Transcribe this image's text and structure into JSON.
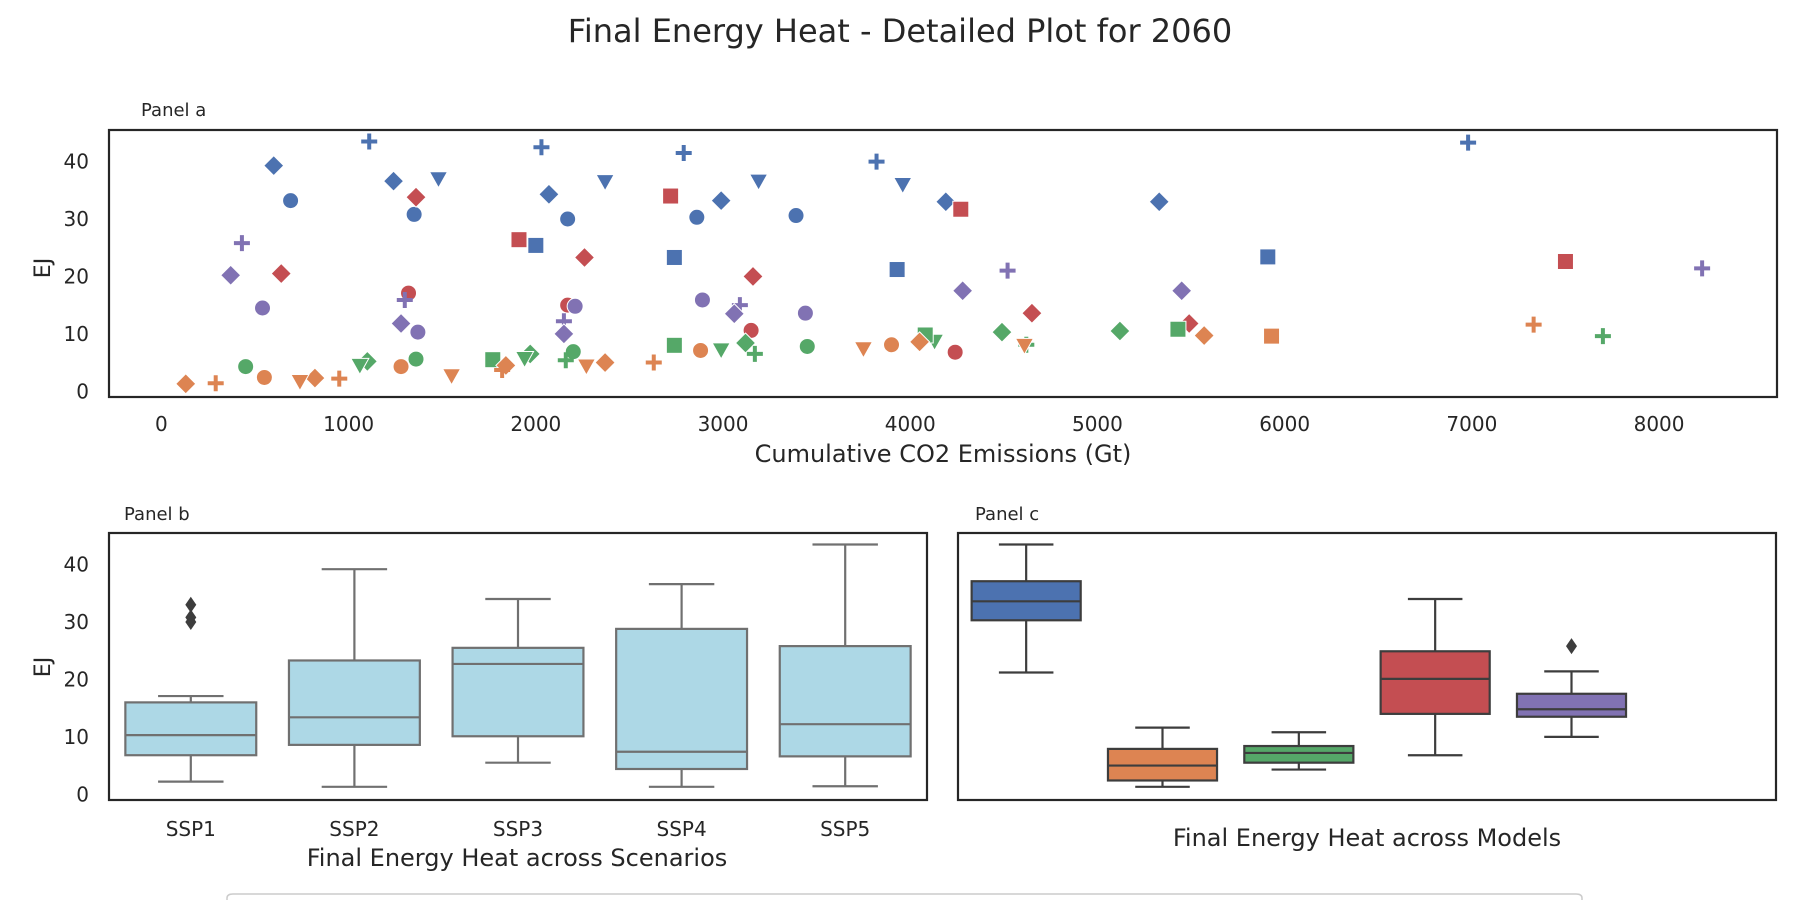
{
  "figure": {
    "title": "Final Energy Heat - Detailed Plot for 2060"
  },
  "colors": {
    "blue": "#4C72B0",
    "orange": "#DD8452",
    "green": "#55A868",
    "red": "#C44E52",
    "purple": "#8172B3",
    "box_fill": "#ADD8E6",
    "box_edge": "#707070"
  },
  "chart_data": [
    {
      "type": "scatter",
      "panel_label": "Panel a",
      "xlabel": "Cumulative CO2 Emissions (Gt)",
      "ylabel": "EJ",
      "xlim": [
        -280,
        8630
      ],
      "ylim": [
        -1,
        45.5
      ],
      "xticks": [
        0,
        1000,
        2000,
        3000,
        4000,
        5000,
        6000,
        7000,
        8000
      ],
      "yticks": [
        0,
        10,
        20,
        30,
        40
      ],
      "grid": false,
      "points": [
        {
          "x": 1110,
          "y": 43.5,
          "color": "blue",
          "marker": "plus"
        },
        {
          "x": 2030,
          "y": 42.5,
          "color": "blue",
          "marker": "plus"
        },
        {
          "x": 2790,
          "y": 41.5,
          "color": "blue",
          "marker": "plus"
        },
        {
          "x": 3820,
          "y": 40,
          "color": "blue",
          "marker": "plus"
        },
        {
          "x": 6980,
          "y": 43.3,
          "color": "blue",
          "marker": "plus"
        },
        {
          "x": 600,
          "y": 39.3,
          "color": "blue",
          "marker": "diamond"
        },
        {
          "x": 1240,
          "y": 36.6,
          "color": "blue",
          "marker": "diamond"
        },
        {
          "x": 2070,
          "y": 34.3,
          "color": "blue",
          "marker": "diamond"
        },
        {
          "x": 2990,
          "y": 33.2,
          "color": "blue",
          "marker": "diamond"
        },
        {
          "x": 4190,
          "y": 33,
          "color": "blue",
          "marker": "diamond"
        },
        {
          "x": 5330,
          "y": 33,
          "color": "blue",
          "marker": "diamond"
        },
        {
          "x": 690,
          "y": 33.2,
          "color": "blue",
          "marker": "circle"
        },
        {
          "x": 1350,
          "y": 30.8,
          "color": "blue",
          "marker": "circle"
        },
        {
          "x": 2170,
          "y": 30,
          "color": "blue",
          "marker": "circle"
        },
        {
          "x": 2860,
          "y": 30.3,
          "color": "blue",
          "marker": "circle"
        },
        {
          "x": 3390,
          "y": 30.6,
          "color": "blue",
          "marker": "circle"
        },
        {
          "x": 1480,
          "y": 37,
          "color": "blue",
          "marker": "triangle_down"
        },
        {
          "x": 2370,
          "y": 36.5,
          "color": "blue",
          "marker": "triangle_down"
        },
        {
          "x": 3190,
          "y": 36.6,
          "color": "blue",
          "marker": "triangle_down"
        },
        {
          "x": 3960,
          "y": 36,
          "color": "blue",
          "marker": "triangle_down"
        },
        {
          "x": 2000,
          "y": 25.4,
          "color": "blue",
          "marker": "square"
        },
        {
          "x": 2740,
          "y": 23.3,
          "color": "blue",
          "marker": "square"
        },
        {
          "x": 3930,
          "y": 21.2,
          "color": "blue",
          "marker": "square"
        },
        {
          "x": 5910,
          "y": 23.4,
          "color": "blue",
          "marker": "square"
        },
        {
          "x": 2720,
          "y": 34,
          "color": "red",
          "marker": "square"
        },
        {
          "x": 4270,
          "y": 31.7,
          "color": "red",
          "marker": "square"
        },
        {
          "x": 1910,
          "y": 26.4,
          "color": "red",
          "marker": "square"
        },
        {
          "x": 7500,
          "y": 22.6,
          "color": "red",
          "marker": "square"
        },
        {
          "x": 1360,
          "y": 33.8,
          "color": "red",
          "marker": "diamond"
        },
        {
          "x": 640,
          "y": 20.5,
          "color": "red",
          "marker": "diamond"
        },
        {
          "x": 2260,
          "y": 23.3,
          "color": "red",
          "marker": "diamond"
        },
        {
          "x": 3160,
          "y": 20,
          "color": "red",
          "marker": "diamond"
        },
        {
          "x": 4650,
          "y": 13.6,
          "color": "red",
          "marker": "diamond"
        },
        {
          "x": 5490,
          "y": 11.8,
          "color": "red",
          "marker": "diamond"
        },
        {
          "x": 1320,
          "y": 17.1,
          "color": "red",
          "marker": "circle"
        },
        {
          "x": 2170,
          "y": 15,
          "color": "red",
          "marker": "circle"
        },
        {
          "x": 3150,
          "y": 10.6,
          "color": "red",
          "marker": "circle"
        },
        {
          "x": 4240,
          "y": 6.8,
          "color": "red",
          "marker": "circle"
        },
        {
          "x": 430,
          "y": 25.8,
          "color": "purple",
          "marker": "plus"
        },
        {
          "x": 1300,
          "y": 15.9,
          "color": "purple",
          "marker": "plus"
        },
        {
          "x": 3090,
          "y": 15,
          "color": "purple",
          "marker": "plus"
        },
        {
          "x": 4520,
          "y": 21,
          "color": "purple",
          "marker": "plus"
        },
        {
          "x": 2150,
          "y": 12.2,
          "color": "purple",
          "marker": "plus"
        },
        {
          "x": 8230,
          "y": 21.4,
          "color": "purple",
          "marker": "plus"
        },
        {
          "x": 370,
          "y": 20.2,
          "color": "purple",
          "marker": "diamond"
        },
        {
          "x": 1280,
          "y": 11.8,
          "color": "purple",
          "marker": "diamond"
        },
        {
          "x": 2150,
          "y": 10,
          "color": "purple",
          "marker": "diamond"
        },
        {
          "x": 3060,
          "y": 13.5,
          "color": "purple",
          "marker": "diamond"
        },
        {
          "x": 4280,
          "y": 17.5,
          "color": "purple",
          "marker": "diamond"
        },
        {
          "x": 5450,
          "y": 17.5,
          "color": "purple",
          "marker": "diamond"
        },
        {
          "x": 540,
          "y": 14.5,
          "color": "purple",
          "marker": "circle"
        },
        {
          "x": 1370,
          "y": 10.3,
          "color": "purple",
          "marker": "circle"
        },
        {
          "x": 2210,
          "y": 14.8,
          "color": "purple",
          "marker": "circle"
        },
        {
          "x": 2890,
          "y": 15.9,
          "color": "purple",
          "marker": "circle"
        },
        {
          "x": 3440,
          "y": 13.6,
          "color": "purple",
          "marker": "circle"
        },
        {
          "x": 450,
          "y": 4.3,
          "color": "green",
          "marker": "circle"
        },
        {
          "x": 1360,
          "y": 5.6,
          "color": "green",
          "marker": "circle"
        },
        {
          "x": 2200,
          "y": 6.9,
          "color": "green",
          "marker": "circle"
        },
        {
          "x": 3450,
          "y": 7.8,
          "color": "green",
          "marker": "circle"
        },
        {
          "x": 1100,
          "y": 5.2,
          "color": "green",
          "marker": "diamond"
        },
        {
          "x": 1970,
          "y": 6.5,
          "color": "green",
          "marker": "diamond"
        },
        {
          "x": 3120,
          "y": 8.4,
          "color": "green",
          "marker": "diamond"
        },
        {
          "x": 4490,
          "y": 10.3,
          "color": "green",
          "marker": "diamond"
        },
        {
          "x": 5120,
          "y": 10.5,
          "color": "green",
          "marker": "diamond"
        },
        {
          "x": 1060,
          "y": 4.5,
          "color": "green",
          "marker": "triangle_down"
        },
        {
          "x": 1940,
          "y": 5.7,
          "color": "green",
          "marker": "triangle_down"
        },
        {
          "x": 2990,
          "y": 7.2,
          "color": "green",
          "marker": "triangle_down"
        },
        {
          "x": 4130,
          "y": 8.7,
          "color": "green",
          "marker": "triangle_down"
        },
        {
          "x": 1770,
          "y": 5.5,
          "color": "green",
          "marker": "square"
        },
        {
          "x": 2740,
          "y": 8,
          "color": "green",
          "marker": "square"
        },
        {
          "x": 4080,
          "y": 9.8,
          "color": "green",
          "marker": "square"
        },
        {
          "x": 5430,
          "y": 10.8,
          "color": "green",
          "marker": "square"
        },
        {
          "x": 2160,
          "y": 5.4,
          "color": "green",
          "marker": "plus"
        },
        {
          "x": 3170,
          "y": 6.5,
          "color": "green",
          "marker": "plus"
        },
        {
          "x": 4620,
          "y": 8.1,
          "color": "green",
          "marker": "plus"
        },
        {
          "x": 7700,
          "y": 9.6,
          "color": "green",
          "marker": "plus"
        },
        {
          "x": 130,
          "y": 1.3,
          "color": "orange",
          "marker": "diamond"
        },
        {
          "x": 820,
          "y": 2.3,
          "color": "orange",
          "marker": "diamond"
        },
        {
          "x": 1840,
          "y": 4.5,
          "color": "orange",
          "marker": "diamond"
        },
        {
          "x": 2370,
          "y": 5,
          "color": "orange",
          "marker": "diamond"
        },
        {
          "x": 4050,
          "y": 8.6,
          "color": "orange",
          "marker": "diamond"
        },
        {
          "x": 5570,
          "y": 9.7,
          "color": "orange",
          "marker": "diamond"
        },
        {
          "x": 290,
          "y": 1.4,
          "color": "orange",
          "marker": "plus"
        },
        {
          "x": 950,
          "y": 2.2,
          "color": "orange",
          "marker": "plus"
        },
        {
          "x": 1820,
          "y": 3.7,
          "color": "orange",
          "marker": "plus"
        },
        {
          "x": 2630,
          "y": 5,
          "color": "orange",
          "marker": "plus"
        },
        {
          "x": 7330,
          "y": 11.6,
          "color": "orange",
          "marker": "plus"
        },
        {
          "x": 550,
          "y": 2.4,
          "color": "orange",
          "marker": "circle"
        },
        {
          "x": 1280,
          "y": 4.3,
          "color": "orange",
          "marker": "circle"
        },
        {
          "x": 2880,
          "y": 7.1,
          "color": "orange",
          "marker": "circle"
        },
        {
          "x": 3900,
          "y": 8.1,
          "color": "orange",
          "marker": "circle"
        },
        {
          "x": 740,
          "y": 1.7,
          "color": "orange",
          "marker": "triangle_down"
        },
        {
          "x": 1550,
          "y": 2.7,
          "color": "orange",
          "marker": "triangle_down"
        },
        {
          "x": 2270,
          "y": 4.4,
          "color": "orange",
          "marker": "triangle_down"
        },
        {
          "x": 3750,
          "y": 7.4,
          "color": "orange",
          "marker": "triangle_down"
        },
        {
          "x": 4610,
          "y": 8,
          "color": "orange",
          "marker": "triangle_down"
        },
        {
          "x": 5930,
          "y": 9.6,
          "color": "orange",
          "marker": "square"
        }
      ]
    },
    {
      "type": "box",
      "panel_label": "Panel b",
      "xlabel": "Final Energy Heat across Scenarios",
      "ylabel": "EJ",
      "ylim": [
        -1,
        45.5
      ],
      "yticks": [
        0,
        10,
        20,
        30,
        40
      ],
      "categories": [
        "SSP1",
        "SSP2",
        "SSP3",
        "SSP4",
        "SSP5"
      ],
      "boxes": [
        {
          "whisker_low": 2.2,
          "q1": 6.8,
          "median": 10.3,
          "q3": 16,
          "whisker_high": 17.1,
          "outliers": [
            30,
            30.8,
            33
          ]
        },
        {
          "whisker_low": 1.3,
          "q1": 8.6,
          "median": 13.4,
          "q3": 23.3,
          "whisker_high": 39.2,
          "outliers": []
        },
        {
          "whisker_low": 5.5,
          "q1": 10.1,
          "median": 22.7,
          "q3": 25.5,
          "whisker_high": 34,
          "outliers": []
        },
        {
          "whisker_low": 1.3,
          "q1": 4.4,
          "median": 7.4,
          "q3": 28.8,
          "whisker_high": 36.6,
          "outliers": []
        },
        {
          "whisker_low": 1.4,
          "q1": 6.6,
          "median": 12.2,
          "q3": 25.8,
          "whisker_high": 43.5,
          "outliers": []
        }
      ]
    },
    {
      "type": "box",
      "panel_label": "Panel c",
      "xlabel": "Final Energy Heat across Models",
      "ylim": [
        -1,
        45.5
      ],
      "boxes": [
        {
          "color": "blue",
          "whisker_low": 21.2,
          "q1": 30.3,
          "median": 33.6,
          "q3": 37.1,
          "whisker_high": 43.5,
          "outliers": []
        },
        {
          "color": "orange",
          "whisker_low": 1.3,
          "q1": 2.4,
          "median": 5,
          "q3": 7.9,
          "whisker_high": 11.6,
          "outliers": []
        },
        {
          "color": "green",
          "whisker_low": 4.3,
          "q1": 5.5,
          "median": 7.2,
          "q3": 8.4,
          "whisker_high": 10.8,
          "outliers": []
        },
        {
          "color": "red",
          "whisker_low": 6.8,
          "q1": 14,
          "median": 20.1,
          "q3": 24.9,
          "whisker_high": 34,
          "outliers": []
        },
        {
          "color": "purple",
          "whisker_low": 10,
          "q1": 13.5,
          "median": 14.8,
          "q3": 17.5,
          "whisker_high": 21.4,
          "outliers": [
            25.8
          ]
        }
      ]
    }
  ]
}
